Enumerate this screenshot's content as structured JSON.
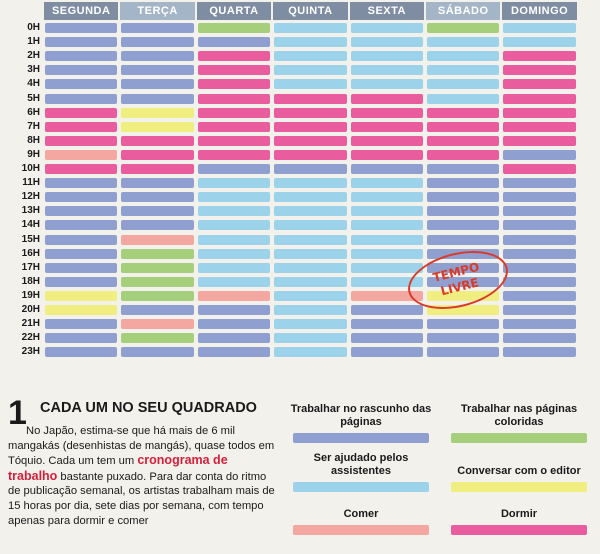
{
  "days": [
    "SEGUNDA",
    "TERÇA",
    "QUARTA",
    "QUINTA",
    "SEXTA",
    "SÁBADO",
    "DOMINGO"
  ],
  "day_header_color": "#7f8da3",
  "day_header_highlight": "#a4b5c8",
  "hours": [
    "0H",
    "1H",
    "2H",
    "3H",
    "4H",
    "5H",
    "6H",
    "7H",
    "8H",
    "9H",
    "10H",
    "11H",
    "12H",
    "13H",
    "14H",
    "15H",
    "16H",
    "17H",
    "18H",
    "19H",
    "20H",
    "21H",
    "22H",
    "23H"
  ],
  "activity_colors": {
    "R": "#8e9fd0",
    "P": "#e95c9e",
    "B": "#9dd3ea",
    "G": "#a6cf7c",
    "E": "#f4a7a0",
    "Y": "#f1ee80",
    "N": "#e95c9e"
  },
  "schedule": [
    [
      "R",
      "R",
      "G",
      "B",
      "B",
      "G",
      "B"
    ],
    [
      "R",
      "R",
      "R",
      "B",
      "B",
      "B",
      "B"
    ],
    [
      "R",
      "R",
      "P",
      "B",
      "B",
      "B",
      "P"
    ],
    [
      "R",
      "R",
      "P",
      "B",
      "B",
      "B",
      "P"
    ],
    [
      "R",
      "R",
      "P",
      "B",
      "B",
      "B",
      "P"
    ],
    [
      "R",
      "R",
      "P",
      "P",
      "P",
      "B",
      "P"
    ],
    [
      "P",
      "Y",
      "P",
      "P",
      "P",
      "P",
      "P"
    ],
    [
      "P",
      "Y",
      "P",
      "P",
      "P",
      "P",
      "P"
    ],
    [
      "P",
      "P",
      "P",
      "P",
      "P",
      "P",
      "P"
    ],
    [
      "E",
      "P",
      "P",
      "P",
      "P",
      "P",
      "R"
    ],
    [
      "P",
      "P",
      "R",
      "R",
      "R",
      "R",
      "P"
    ],
    [
      "R",
      "R",
      "B",
      "B",
      "B",
      "R",
      "R"
    ],
    [
      "R",
      "R",
      "B",
      "B",
      "B",
      "R",
      "R"
    ],
    [
      "R",
      "R",
      "B",
      "B",
      "B",
      "R",
      "R"
    ],
    [
      "R",
      "R",
      "B",
      "B",
      "B",
      "R",
      "R"
    ],
    [
      "R",
      "E",
      "B",
      "B",
      "B",
      "R",
      "R"
    ],
    [
      "R",
      "G",
      "B",
      "B",
      "B",
      "R",
      "R"
    ],
    [
      "R",
      "G",
      "B",
      "B",
      "B",
      "R",
      "R"
    ],
    [
      "R",
      "G",
      "B",
      "B",
      "B",
      "R",
      "R"
    ],
    [
      "Y",
      "G",
      "E",
      "B",
      "E",
      "Y",
      "R"
    ],
    [
      "Y",
      "R",
      "R",
      "B",
      "R",
      "Y",
      "R"
    ],
    [
      "R",
      "E",
      "R",
      "B",
      "R",
      "R",
      "R"
    ],
    [
      "R",
      "G",
      "R",
      "B",
      "R",
      "R",
      "R"
    ],
    [
      "R",
      "R",
      "R",
      "B",
      "R",
      "R",
      "R"
    ]
  ],
  "note": {
    "line1": "TEMPO",
    "line2": "LIVRE",
    "color": "#d93a2a"
  },
  "article": {
    "number": "1",
    "headline": "CADA UM NO SEU QUADRADO",
    "text_before": "No Japão, estima-se que há mais de 6 mil mangakás (desenhistas de mangás), quase todos em Tóquio. Cada um tem um ",
    "highlight": "cronograma de trabalho",
    "highlight_color": "#d61f3a",
    "text_after": " bastante puxado. Para dar conta do ritmo de publicação semanal, os artistas trabalham mais de 15 horas por dia, sete dias por semana, com tempo apenas para dormir e comer"
  },
  "legend": [
    {
      "label": "Trabalhar no rascunho das páginas",
      "color": "#8e9fd0"
    },
    {
      "label": "Trabalhar nas páginas coloridas",
      "color": "#a6cf7c"
    },
    {
      "label": "Ser ajudado pelos assistentes",
      "color": "#9dd3ea"
    },
    {
      "label": "Conversar com o editor",
      "color": "#f1ee80"
    },
    {
      "label": "Comer",
      "color": "#f4a7a0"
    },
    {
      "label": "Dormir",
      "color": "#e95c9e"
    }
  ]
}
